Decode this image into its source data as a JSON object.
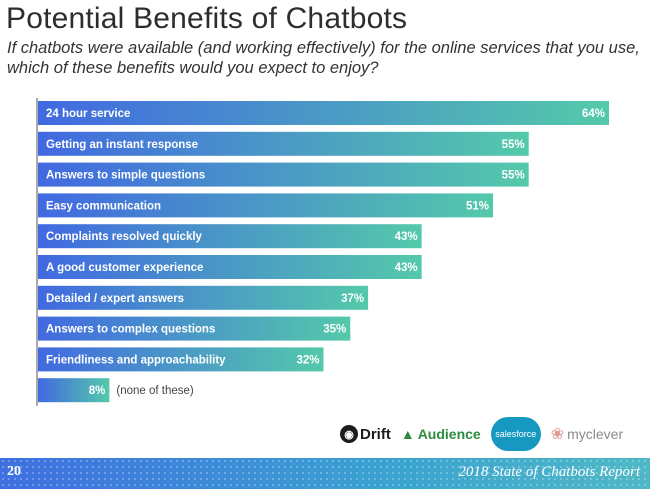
{
  "header": {
    "title": "Potential Benefits of Chatbots",
    "subtitle": "If chatbots were available (and working effectively) for the online services that you use, which of these benefits would you expect to enjoy?"
  },
  "chart_data": {
    "type": "bar",
    "orientation": "horizontal",
    "title": "Potential Benefits of Chatbots",
    "categories": [
      "24 hour service",
      "Getting an instant response",
      "Answers to simple questions",
      "Easy communication",
      "Complaints resolved quickly",
      "A good customer experience",
      "Detailed / expert answers",
      "Answers to complex questions",
      "Friendliness and approachability",
      "(none of these)"
    ],
    "values": [
      64,
      55,
      55,
      51,
      43,
      43,
      37,
      35,
      32,
      8
    ],
    "value_labels": [
      "64%",
      "55%",
      "55%",
      "51%",
      "43%",
      "43%",
      "37%",
      "35%",
      "32%",
      "8%"
    ],
    "unit": "%",
    "xlim": [
      0,
      64
    ],
    "gradient": [
      "#4169e1",
      "#54c9aa"
    ]
  },
  "logos": [
    "Drift",
    "Audience",
    "salesforce",
    "myclever"
  ],
  "footer": {
    "page_number": "20",
    "report_title": "2018 State of Chatbots Report"
  }
}
